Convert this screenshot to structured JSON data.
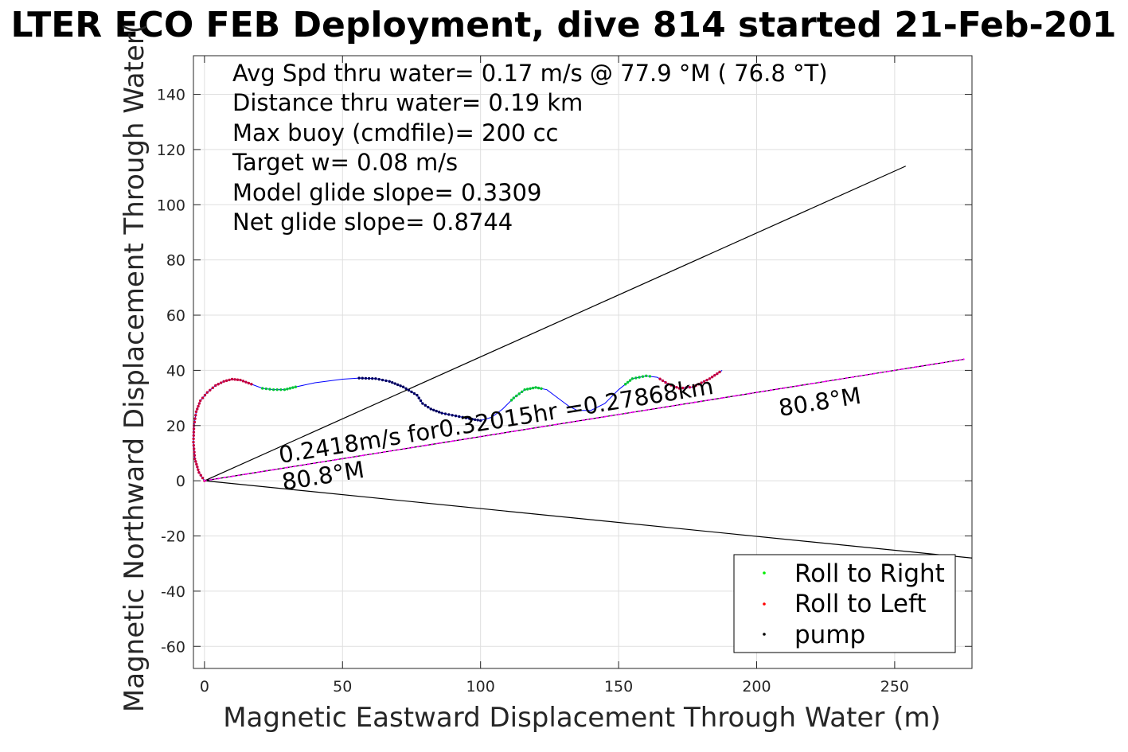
{
  "chart_data": {
    "type": "line",
    "title": "LTER ECO FEB Deployment, dive 814 started 21-Feb-201",
    "xlabel": "Magnetic Eastward Displacement Through Water (m)",
    "ylabel": "Magnetic Northward Displacement Through Water(",
    "xlim": [
      -4,
      278
    ],
    "ylim": [
      -68,
      154
    ],
    "xticks": [
      0,
      50,
      100,
      150,
      200,
      250
    ],
    "yticks": [
      -60,
      -40,
      -20,
      0,
      20,
      40,
      60,
      80,
      100,
      120,
      140
    ],
    "grid": true,
    "stats": [
      "Avg Spd thru water=  0.17 m/s @  77.9 °M ( 76.8 °T)",
      "Distance thru water=  0.19 km",
      "Max buoy (cmdfile)= 200 cc",
      "Target w= 0.08 m/s",
      "Model glide slope= 0.3309",
      "Net glide slope= 0.8744"
    ],
    "annotations": {
      "speed_label": "0.2418m/s for0.32015hr =0.27868km",
      "heading_near": "80.8°M",
      "heading_far": "80.8°M"
    },
    "legend": {
      "position": "bottom-right",
      "entries": [
        {
          "label": "Roll to Right",
          "color": "#00ee00"
        },
        {
          "label": "Roll to Left",
          "color": "#ff0000"
        },
        {
          "label": "pump",
          "color": "#000000"
        }
      ]
    },
    "reference_lines": [
      {
        "name": "upper",
        "from": [
          0,
          0
        ],
        "to": [
          254,
          114
        ],
        "color": "#000000"
      },
      {
        "name": "heading",
        "from": [
          0,
          0
        ],
        "to": [
          275,
          44
        ],
        "color": "#000000"
      },
      {
        "name": "lower",
        "from": [
          0,
          0
        ],
        "to": [
          278,
          -28
        ],
        "color": "#000000"
      }
    ],
    "track": {
      "color": "#0000ff",
      "points": [
        [
          0,
          0
        ],
        [
          -2,
          3
        ],
        [
          -3.5,
          8
        ],
        [
          -4,
          14
        ],
        [
          -3.8,
          20
        ],
        [
          -3,
          25
        ],
        [
          -1.5,
          29
        ],
        [
          1,
          32
        ],
        [
          4,
          34.5
        ],
        [
          7,
          36
        ],
        [
          10,
          36.8
        ],
        [
          13,
          36.5
        ],
        [
          17,
          35
        ],
        [
          21,
          33.5
        ],
        [
          25,
          33
        ],
        [
          29,
          33
        ],
        [
          33,
          34
        ],
        [
          40,
          35.5
        ],
        [
          50,
          36.8
        ],
        [
          56,
          37.2
        ],
        [
          62,
          37
        ],
        [
          67,
          36
        ],
        [
          72,
          34
        ],
        [
          77,
          31
        ],
        [
          79,
          28
        ],
        [
          82,
          26
        ],
        [
          86,
          24.5
        ],
        [
          91,
          23.5
        ],
        [
          96,
          22.5
        ],
        [
          100,
          21.8
        ],
        [
          104,
          23
        ],
        [
          108,
          26
        ],
        [
          112,
          30
        ],
        [
          116,
          33
        ],
        [
          120,
          33.8
        ],
        [
          124,
          33
        ],
        [
          128,
          30
        ],
        [
          132,
          27
        ],
        [
          135,
          25.5
        ],
        [
          140,
          25.5
        ],
        [
          145,
          28
        ],
        [
          150,
          33
        ],
        [
          155,
          37
        ],
        [
          160,
          38
        ],
        [
          164,
          37.5
        ],
        [
          168,
          35
        ],
        [
          172,
          33.5
        ],
        [
          177,
          34
        ],
        [
          183,
          37
        ],
        [
          187.5,
          40
        ]
      ],
      "roll_right_ranges": [
        [
          21,
          33
        ],
        [
          111,
          122
        ],
        [
          152,
          162
        ]
      ],
      "roll_left_ranges": [
        [
          -4,
          17
        ],
        [
          165,
          187
        ]
      ],
      "pump_ranges": [
        [
          56,
          100
        ]
      ]
    },
    "heading_track": {
      "color": "#ff00ff",
      "from": [
        0,
        0
      ],
      "to": [
        275,
        44
      ]
    }
  }
}
